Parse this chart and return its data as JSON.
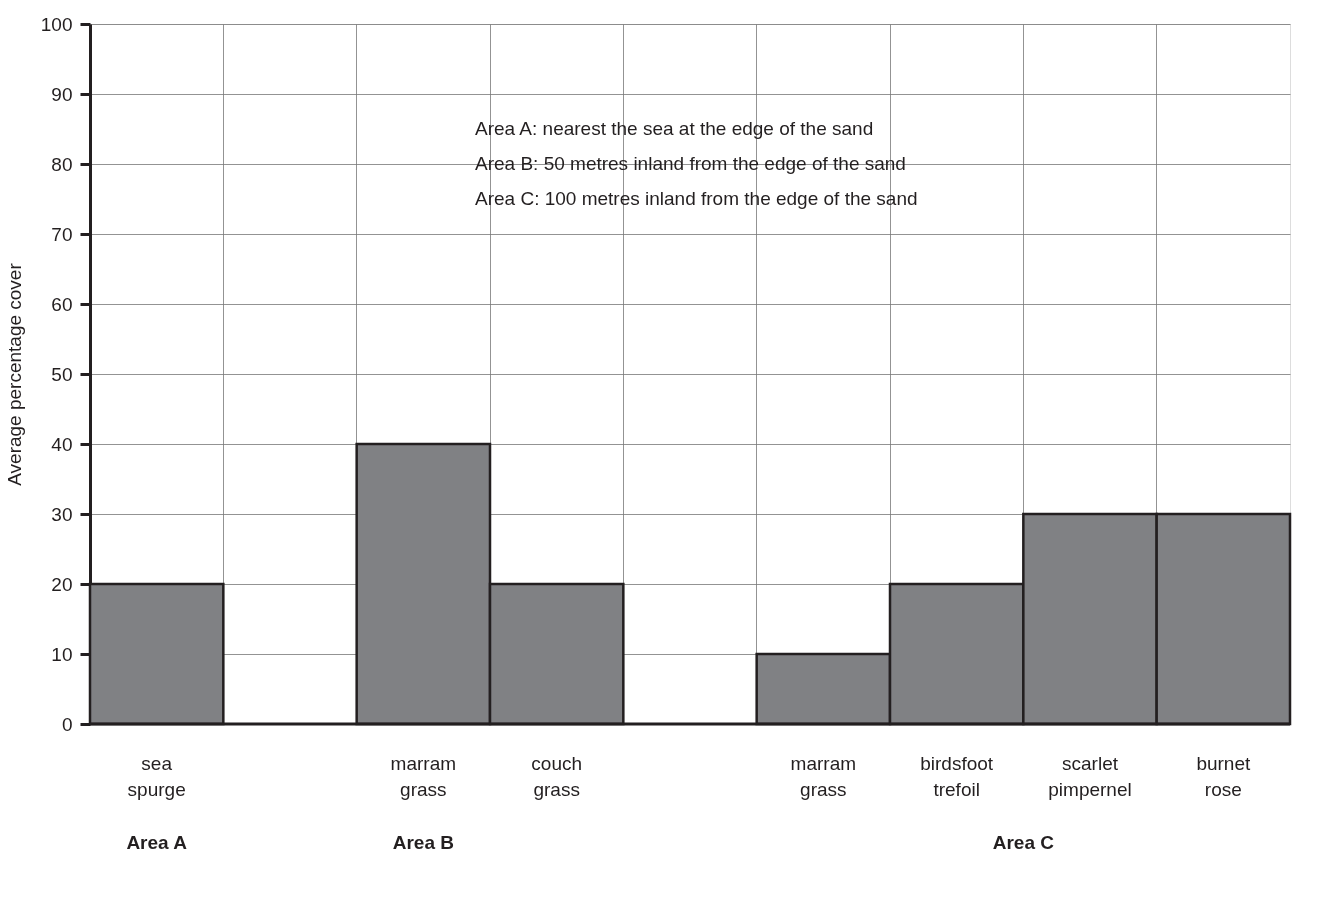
{
  "chart_data": {
    "type": "bar",
    "ylabel": "Average percentage cover",
    "categories": [
      "sea spurge",
      null,
      "marram grass",
      "couch grass",
      null,
      "marram grass",
      "birdsfoot trefoil",
      "scarlet pimpernel",
      "burnet rose"
    ],
    "values": [
      20,
      null,
      40,
      20,
      null,
      10,
      20,
      30,
      30
    ],
    "color": "#808184",
    "ylim": [
      0,
      100
    ],
    "yticks": [
      0,
      10,
      20,
      30,
      40,
      50,
      60,
      70,
      80,
      90,
      100
    ],
    "grid": true,
    "annotations": [
      "Area A",
      "Area B",
      "Area C",
      "Area A:  nearest the sea at the edge of the sand",
      "Area B:  50 metres inland from the edge of the sand",
      "Area C:  100 metres inland from the edge of the sand"
    ]
  }
}
